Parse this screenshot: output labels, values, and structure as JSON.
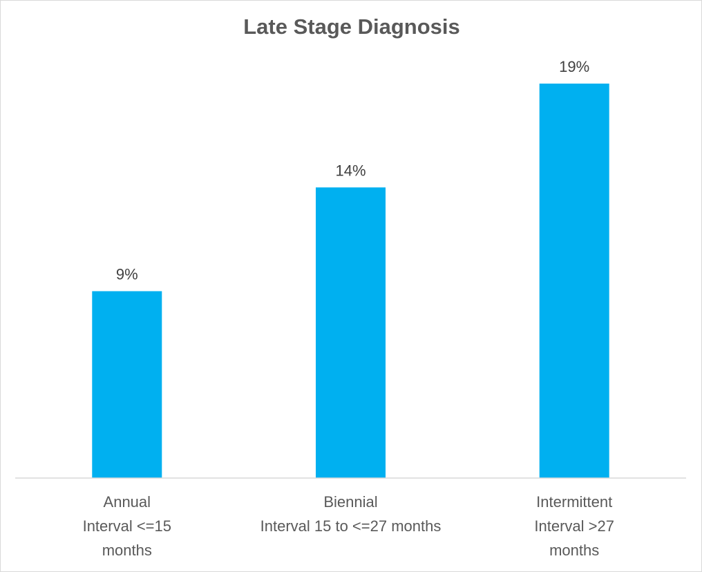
{
  "chart_data": {
    "type": "bar",
    "title": "Late Stage Diagnosis",
    "xlabel": "",
    "ylabel": "",
    "categories": [
      [
        "Annual",
        "Interval <=15",
        "months"
      ],
      [
        "Biennial",
        "Interval 15 to <=27 months"
      ],
      [
        "Intermittent",
        "Interval >27",
        "months"
      ]
    ],
    "values": [
      9,
      14,
      19
    ],
    "data_labels": [
      "9%",
      "14%",
      "19%"
    ],
    "ylim": [
      0,
      19
    ],
    "grid": false,
    "legend": "none",
    "bar_color": "#00b0f0",
    "axis_color": "#d9d9d9"
  }
}
